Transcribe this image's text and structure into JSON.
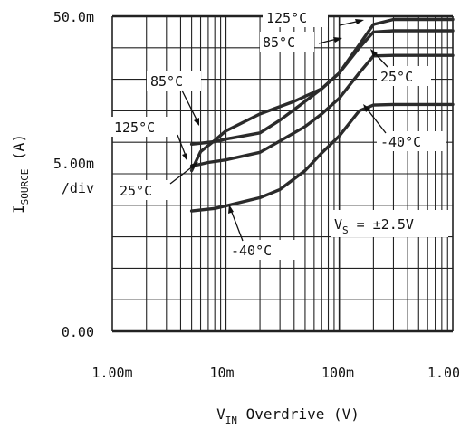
{
  "chart_data": {
    "type": "line",
    "x_scale": "log",
    "xlim": [
      0.001,
      1.0
    ],
    "ylim": [
      0.0,
      0.05
    ],
    "grid": true,
    "x_ticks": [
      0.001,
      0.01,
      0.1,
      1.0
    ],
    "x_tick_labels": [
      "1.00m",
      "10m",
      "100m",
      "1.00"
    ],
    "y_tick_labels": [
      {
        "value": 0.05,
        "label": "50.0m"
      },
      {
        "value": 0.0,
        "label": "0.00"
      }
    ],
    "y_scale_label": "5.00m",
    "y_scale_unit": "/div",
    "xlabel": {
      "prefix": "V",
      "sub": "IN",
      "suffix": " Overdrive (V)"
    },
    "ylabel": {
      "prefix": "I",
      "sub": "SOURCE",
      "suffix": " (A)"
    },
    "condition": {
      "prefix": "V",
      "sub": "S",
      "suffix": " = ±2.5V"
    },
    "series": [
      {
        "name": "125°C",
        "x": [
          0.005,
          0.006,
          0.008,
          0.01,
          0.02,
          0.04,
          0.07,
          0.1,
          0.15,
          0.2,
          0.3,
          0.5,
          1.0
        ],
        "y": [
          0.0255,
          0.0285,
          0.0303,
          0.0318,
          0.0345,
          0.0365,
          0.0385,
          0.041,
          0.0455,
          0.0487,
          0.0495,
          0.0495,
          0.0495
        ]
      },
      {
        "name": "85°C",
        "x": [
          0.005,
          0.008,
          0.01,
          0.02,
          0.03,
          0.05,
          0.07,
          0.1,
          0.15,
          0.2,
          0.3,
          0.5,
          1.0
        ],
        "y": [
          0.0297,
          0.0301,
          0.0305,
          0.0315,
          0.0335,
          0.0365,
          0.0385,
          0.041,
          0.045,
          0.0475,
          0.0477,
          0.0477,
          0.0477
        ]
      },
      {
        "name": "25°C",
        "x": [
          0.005,
          0.007,
          0.01,
          0.02,
          0.03,
          0.05,
          0.07,
          0.1,
          0.15,
          0.2,
          0.3,
          0.5,
          1.0
        ],
        "y": [
          0.0262,
          0.0268,
          0.0272,
          0.0284,
          0.0302,
          0.0325,
          0.0345,
          0.037,
          0.041,
          0.0437,
          0.0438,
          0.0438,
          0.0438
        ]
      },
      {
        "name": "-40°C",
        "x": [
          0.005,
          0.008,
          0.01,
          0.02,
          0.03,
          0.05,
          0.07,
          0.1,
          0.15,
          0.2,
          0.3,
          0.5,
          1.0
        ],
        "y": [
          0.0191,
          0.0195,
          0.0199,
          0.0212,
          0.0225,
          0.0255,
          0.0283,
          0.031,
          0.035,
          0.0359,
          0.036,
          0.036,
          0.036
        ]
      }
    ],
    "annotations": [
      "125°C",
      "85°C",
      "25°C",
      "-40°C",
      "85°C",
      "125°C",
      "25°C",
      "-40°C"
    ]
  }
}
